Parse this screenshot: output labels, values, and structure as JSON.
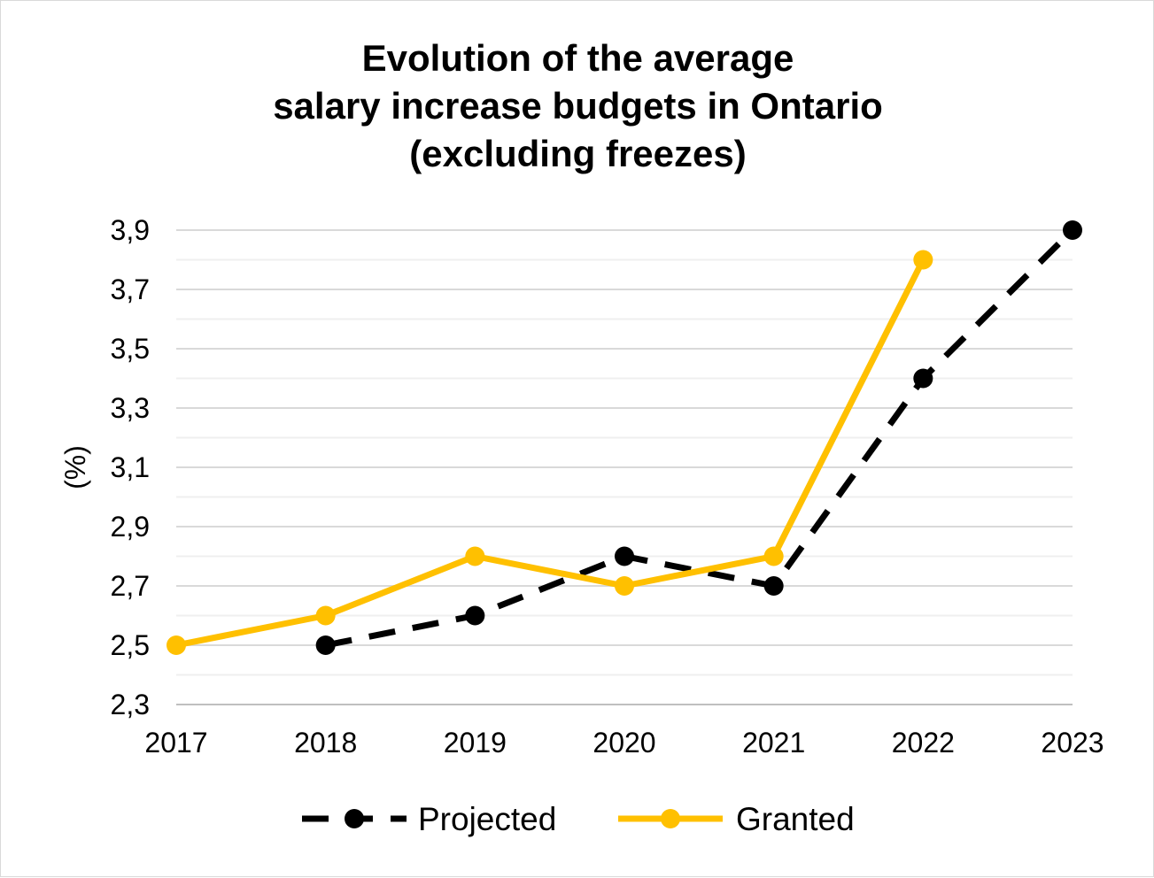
{
  "chart_data": {
    "type": "line",
    "title_lines": [
      "Evolution of the average",
      "salary increase budgets in Ontario",
      "(excluding freezes)"
    ],
    "ylabel": "(%)",
    "xlabel": "",
    "categories": [
      "2017",
      "2018",
      "2019",
      "2020",
      "2021",
      "2022",
      "2023"
    ],
    "ylim": [
      2.3,
      3.9
    ],
    "y_ticks": [
      "2,3",
      "2,5",
      "2,7",
      "2,9",
      "3,1",
      "3,3",
      "3,5",
      "3,7",
      "3,9"
    ],
    "grid": true,
    "legend_position": "bottom",
    "series": [
      {
        "name": "Projected",
        "color": "#000000",
        "style": "dashed",
        "values": [
          null,
          2.5,
          2.6,
          2.8,
          2.7,
          3.4,
          3.9
        ]
      },
      {
        "name": "Granted",
        "color": "#ffc000",
        "style": "solid",
        "values": [
          2.5,
          2.6,
          2.8,
          2.7,
          2.8,
          3.8,
          null
        ]
      }
    ]
  }
}
